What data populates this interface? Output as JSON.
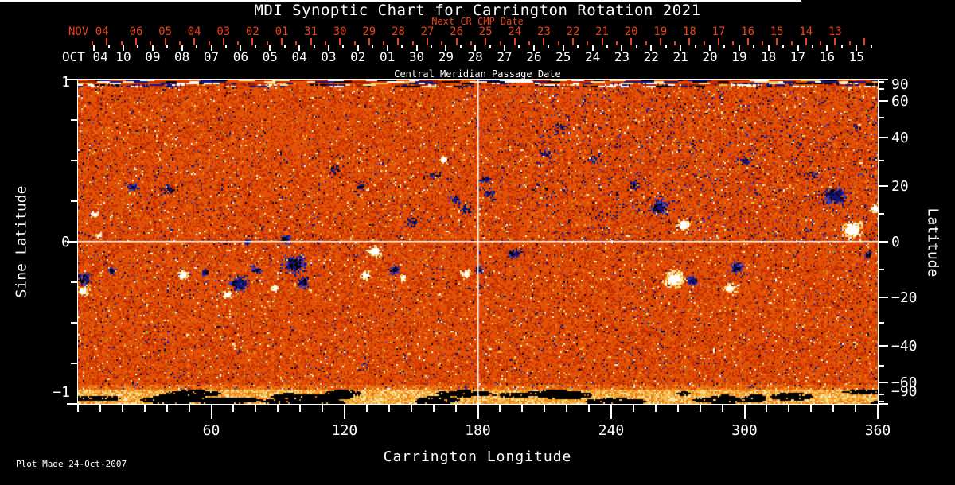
{
  "title": "MDI Synoptic Chart for Carrington Rotation 2021",
  "plot_made": "Plot Made 24-Oct-2007",
  "colors": {
    "background": "#000000",
    "text": "#FFFFFF",
    "accent_red": "#E8431A",
    "crosshair": "#FFFFFF",
    "olive_speck": "#A8A028"
  },
  "chart_data": {
    "type": "heatmap",
    "title": "MDI Synoptic Chart for Carrington Rotation 2021",
    "description": "Solar magnetogram synoptic map for Carrington rotation 2021: noisy orange/red field with negative-polarity (black/navy) and positive-polarity (white/yellow) active regions; white crosshair at longitude 180 and sine latitude 0.",
    "x_axis": {
      "label": "Carrington Longitude",
      "range": [
        0,
        360
      ],
      "major_ticks": [
        60,
        120,
        180,
        240,
        300,
        360
      ],
      "minor_step_deg": 10
    },
    "y_axis_left": {
      "label": "Sine Latitude",
      "range": [
        -1,
        1
      ],
      "labeled_ticks": [
        1,
        0,
        -1
      ],
      "minor_ticks": [
        0.75,
        0.5,
        0.25,
        -0.25,
        -0.5,
        -0.75
      ]
    },
    "y_axis_right": {
      "label": "Latitude",
      "labeled_ticks": [
        90,
        60,
        40,
        20,
        0,
        -20,
        -40,
        -60,
        -90
      ],
      "minor_ticks": [
        80,
        70,
        50,
        30,
        10,
        -10,
        -30,
        -50,
        -70,
        -80
      ]
    },
    "top_axis_next_cr": {
      "label": "Next CR CMP Date",
      "month_label": "NOV 04",
      "days": [
        "06",
        "05",
        "04",
        "03",
        "02",
        "01",
        "31",
        "30",
        "29",
        "28",
        "27",
        "26",
        "25",
        "24",
        "23",
        "22",
        "21",
        "20",
        "19",
        "18",
        "17",
        "16",
        "15",
        "14",
        "13"
      ]
    },
    "top_axis_cmp": {
      "label": "Central Meridian Passage Date",
      "month_label": "OCT 04",
      "days": [
        "10",
        "09",
        "08",
        "07",
        "06",
        "05",
        "04",
        "03",
        "02",
        "01",
        "30",
        "29",
        "28",
        "27",
        "26",
        "25",
        "24",
        "23",
        "22",
        "21",
        "20",
        "19",
        "18",
        "17",
        "16",
        "15"
      ]
    },
    "crosshair": {
      "longitude_deg": 180,
      "sine_latitude": 0
    },
    "colormap": [
      {
        "v": -9,
        "color": "#000000"
      },
      {
        "v": -0.85,
        "color": "#141478"
      },
      {
        "v": -0.5,
        "color": "#3C3CB4"
      },
      {
        "v": -0.26,
        "color": "#6E0E00"
      },
      {
        "v": -0.12,
        "color": "#9C1E00"
      },
      {
        "v": 0.0,
        "color": "#C43000"
      },
      {
        "v": 0.12,
        "color": "#E25106"
      },
      {
        "v": 0.3,
        "color": "#EF7712"
      },
      {
        "v": 0.46,
        "color": "#F49C2C"
      },
      {
        "v": 0.6,
        "color": "#F2C14E"
      },
      {
        "v": 0.74,
        "color": "#FBE9A8"
      },
      {
        "v": 0.88,
        "color": "#FFFFFF"
      }
    ],
    "active_regions": [
      {
        "lon": 2.5,
        "sinlat": -0.225,
        "size": 18,
        "polarity": -1
      },
      {
        "lon": 2,
        "sinlat": -0.3,
        "size": 16,
        "polarity": 1
      },
      {
        "lon": 15,
        "sinlat": -0.176,
        "size": 10,
        "polarity": -1
      },
      {
        "lon": 24,
        "sinlat": 0.34,
        "size": 12,
        "polarity": -1
      },
      {
        "lon": 7,
        "sinlat": 0.17,
        "size": 10,
        "polarity": 1
      },
      {
        "lon": 9,
        "sinlat": 0.04,
        "size": 8,
        "polarity": 1
      },
      {
        "lon": 47,
        "sinlat": -0.2,
        "size": 14,
        "polarity": 1
      },
      {
        "lon": 57,
        "sinlat": -0.186,
        "size": 10,
        "polarity": -1
      },
      {
        "lon": 72,
        "sinlat": -0.255,
        "size": 22,
        "polarity": -1
      },
      {
        "lon": 67,
        "sinlat": -0.324,
        "size": 12,
        "polarity": 1
      },
      {
        "lon": 76,
        "sinlat": 0.0,
        "size": 10,
        "polarity": -1
      },
      {
        "lon": 80,
        "sinlat": -0.167,
        "size": 12,
        "polarity": -1
      },
      {
        "lon": 97,
        "sinlat": -0.137,
        "size": 28,
        "polarity": -1
      },
      {
        "lon": 101,
        "sinlat": -0.25,
        "size": 16,
        "polarity": -1
      },
      {
        "lon": 93,
        "sinlat": 0.02,
        "size": 14,
        "polarity": -1
      },
      {
        "lon": 88,
        "sinlat": -0.284,
        "size": 10,
        "polarity": 1
      },
      {
        "lon": 133,
        "sinlat": -0.059,
        "size": 18,
        "polarity": 1
      },
      {
        "lon": 142,
        "sinlat": -0.167,
        "size": 14,
        "polarity": -1
      },
      {
        "lon": 129,
        "sinlat": -0.2,
        "size": 12,
        "polarity": 1
      },
      {
        "lon": 146,
        "sinlat": -0.22,
        "size": 10,
        "polarity": 1
      },
      {
        "lon": 164,
        "sinlat": 0.51,
        "size": 10,
        "polarity": 1
      },
      {
        "lon": 169,
        "sinlat": 0.265,
        "size": 12,
        "polarity": -1
      },
      {
        "lon": 183,
        "sinlat": 0.387,
        "size": 12,
        "polarity": -1
      },
      {
        "lon": 174,
        "sinlat": -0.191,
        "size": 12,
        "polarity": 1
      },
      {
        "lon": 180,
        "sinlat": -0.167,
        "size": 12,
        "polarity": -1
      },
      {
        "lon": 196,
        "sinlat": -0.069,
        "size": 16,
        "polarity": -1
      },
      {
        "lon": 261,
        "sinlat": 0.216,
        "size": 24,
        "polarity": -1
      },
      {
        "lon": 272,
        "sinlat": 0.103,
        "size": 18,
        "polarity": 1
      },
      {
        "lon": 268,
        "sinlat": -0.225,
        "size": 26,
        "polarity": 1
      },
      {
        "lon": 276,
        "sinlat": -0.235,
        "size": 14,
        "polarity": -1
      },
      {
        "lon": 296,
        "sinlat": -0.157,
        "size": 16,
        "polarity": -1
      },
      {
        "lon": 293,
        "sinlat": -0.284,
        "size": 14,
        "polarity": 1
      },
      {
        "lon": 340,
        "sinlat": 0.289,
        "size": 28,
        "polarity": -1
      },
      {
        "lon": 348,
        "sinlat": 0.078,
        "size": 26,
        "polarity": 1
      },
      {
        "lon": 355,
        "sinlat": -0.078,
        "size": 10,
        "polarity": -1
      },
      {
        "lon": 358,
        "sinlat": 0.206,
        "size": 12,
        "polarity": 1
      }
    ],
    "speck_clusters": [
      {
        "lon": 115,
        "sinlat": 0.45,
        "size": 12
      },
      {
        "lon": 127,
        "sinlat": 0.35,
        "size": 10
      },
      {
        "lon": 160,
        "sinlat": 0.42,
        "size": 10
      },
      {
        "lon": 174,
        "sinlat": 0.2,
        "size": 14
      },
      {
        "lon": 185,
        "sinlat": 0.3,
        "size": 12
      },
      {
        "lon": 40,
        "sinlat": 0.33,
        "size": 12
      },
      {
        "lon": 150,
        "sinlat": 0.12,
        "size": 12
      },
      {
        "lon": 217,
        "sinlat": 0.71,
        "size": 12
      },
      {
        "lon": 232,
        "sinlat": 0.51,
        "size": 10
      },
      {
        "lon": 250,
        "sinlat": 0.35,
        "size": 10
      },
      {
        "lon": 300,
        "sinlat": 0.5,
        "size": 10
      },
      {
        "lon": 330,
        "sinlat": 0.42,
        "size": 10
      },
      {
        "lon": 210,
        "sinlat": 0.55,
        "size": 10
      }
    ],
    "polar_bands": {
      "south": "bright white/yellow band with elongated black patches near sine latitude -1",
      "north": "streaked dark/blue and yellow mottling near sine latitude +1"
    }
  }
}
